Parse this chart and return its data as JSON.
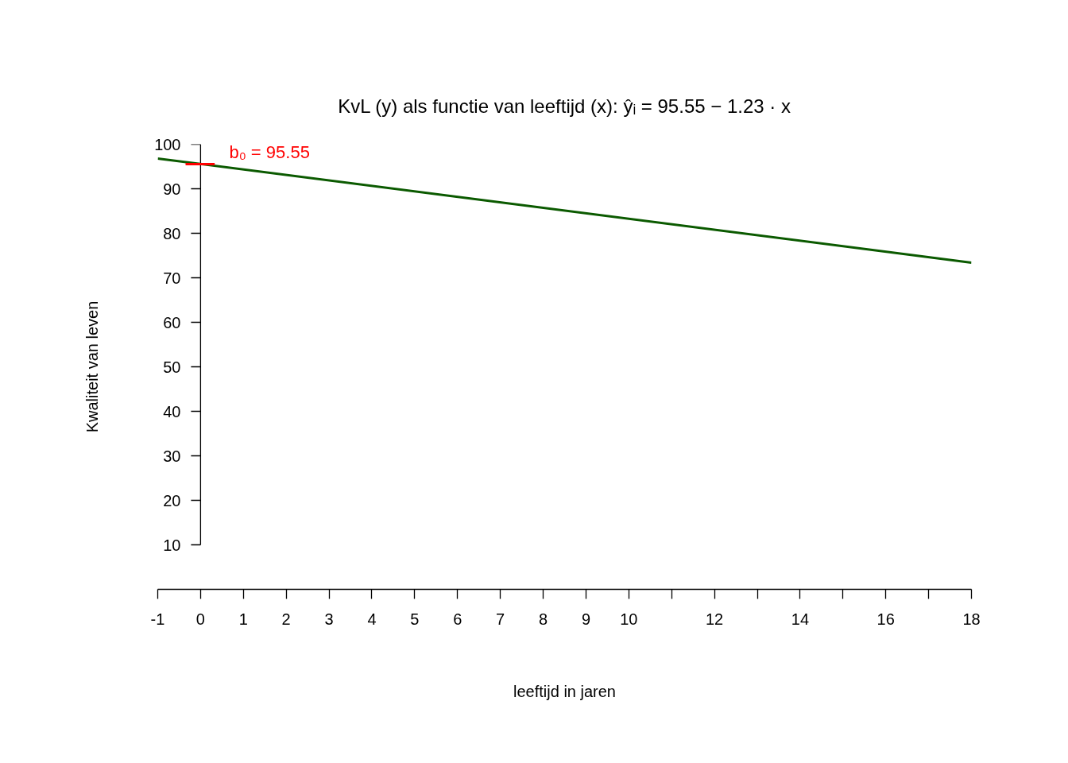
{
  "chart_data": {
    "type": "line",
    "title": "KvL (y) als functie van leeftijd (x): ŷᵢ = 95.55 − 1.23 · x",
    "xlabel": "leeftijd in jaren",
    "ylabel": "Kwaliteit van leven",
    "x": [
      -1,
      18
    ],
    "series": [
      {
        "color": "#0b5a00",
        "values": [
          96.8,
          73.4
        ]
      }
    ],
    "xlim": [
      -1,
      18
    ],
    "ylim": [
      0,
      100
    ],
    "xticks": [
      -1,
      0,
      1,
      2,
      3,
      4,
      5,
      6,
      7,
      8,
      9,
      10,
      {
        "value": 11,
        "label": null
      },
      12,
      {
        "value": 13,
        "label": null
      },
      14,
      {
        "value": 15,
        "label": null
      },
      16,
      {
        "value": 17,
        "label": null
      },
      18
    ],
    "yticks": [
      10,
      20,
      30,
      40,
      50,
      60,
      70,
      80,
      90,
      100
    ],
    "annotations": [
      {
        "text": "b₀ = 95.55",
        "x": 0,
        "y": 95.55
      }
    ],
    "grid": false,
    "marker": "none",
    "line_style": "solid"
  }
}
